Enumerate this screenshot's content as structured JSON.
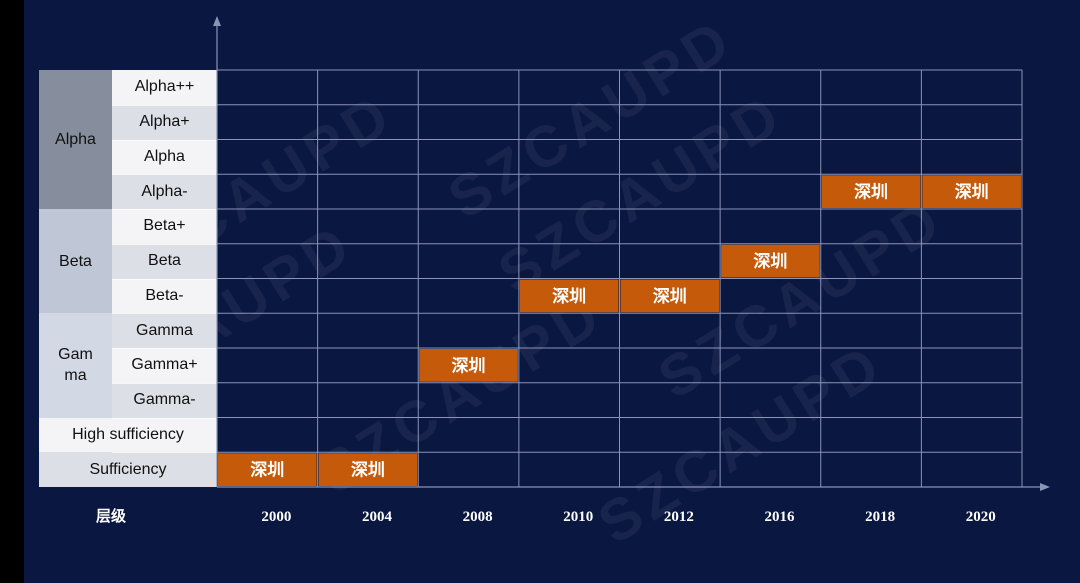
{
  "chart_data": {
    "type": "table",
    "watermark": "SZCAUPD",
    "x_axis_title": "层级",
    "x_categories": [
      "2000",
      "2004",
      "2008",
      "2010",
      "2012",
      "2016",
      "2018",
      "2020"
    ],
    "tiers": [
      {
        "label": "Alpha",
        "levels": [
          "Alpha++",
          "Alpha+",
          "Alpha",
          "Alpha-"
        ]
      },
      {
        "label": "Beta",
        "levels": [
          "Beta+",
          "Beta",
          "Beta-"
        ]
      },
      {
        "label": "Gam\nma",
        "levels": [
          "Gamma",
          "Gamma+",
          "Gamma-"
        ]
      },
      {
        "label": "",
        "levels": [
          "High sufficiency"
        ]
      },
      {
        "label": "",
        "levels": [
          "Sufficiency"
        ]
      }
    ],
    "series": [
      {
        "name": "深圳",
        "points": [
          {
            "year": "2000",
            "level": "Sufficiency"
          },
          {
            "year": "2004",
            "level": "Sufficiency"
          },
          {
            "year": "2008",
            "level": "Gamma+"
          },
          {
            "year": "2010",
            "level": "Beta-"
          },
          {
            "year": "2012",
            "level": "Beta-"
          },
          {
            "year": "2016",
            "level": "Beta"
          },
          {
            "year": "2018",
            "level": "Alpha-"
          },
          {
            "year": "2020",
            "level": "Alpha-"
          }
        ]
      }
    ],
    "colors": {
      "background": "#0a1741",
      "grid": "#8a93b8",
      "highlight": "#c55a0b",
      "tier_alpha": "#868d9c",
      "tier_beta": "#bfc6d6",
      "tier_gamma": "#d2d8e4",
      "level_light": "#f4f4f6",
      "level_dark": "#dcdfe6"
    }
  }
}
